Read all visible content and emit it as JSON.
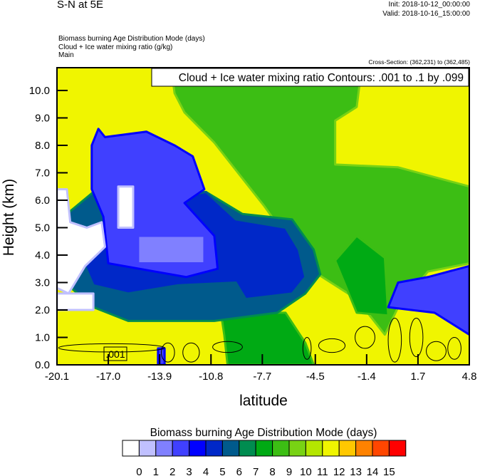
{
  "header": {
    "title": "S-N at 5E",
    "init": "Init: 2018-10-12_00:00:00",
    "valid": "Valid: 2018-10-16_15:00:00",
    "fields": [
      "Biomass burning Age Distribution Mode   (days)",
      "Cloud + Ice water mixing ratio   (g/kg)",
      "Main"
    ],
    "cross_section": "Cross-Section: (362,231) to (362,485)"
  },
  "chart_data": {
    "type": "heatmap",
    "xlabel": "latitude",
    "ylabel": "Height (km)",
    "xlim": [
      -20.1,
      4.8
    ],
    "ylim": [
      0,
      10.83
    ],
    "xticks": [
      "-20.1",
      "-17.0",
      "-13.9",
      "-10.8",
      "-7.7",
      "-4.5",
      "-1.4",
      "1.7",
      "4.8"
    ],
    "xtick_values": [
      -20.1,
      -17.0,
      -13.9,
      -10.8,
      -7.7,
      -4.5,
      -1.4,
      1.7,
      4.8
    ],
    "yticks": [
      "0.0",
      "1.0",
      "2.0",
      "3.0",
      "4.0",
      "5.0",
      "6.0",
      "7.0",
      "8.0",
      "9.0",
      "10.0"
    ],
    "contour_label": "Cloud + Ice water mixing ratio Contours: .001 to .1 by .099",
    "contour_value_label": ".001",
    "background_level": 11,
    "regions": [
      {
        "level": 9,
        "points": [
          [
            -13.2,
            10.83
          ],
          [
            -1.7,
            10.83
          ],
          [
            -2.0,
            9.4
          ],
          [
            -3.3,
            8.9
          ],
          [
            -3.3,
            7.3
          ],
          [
            0.5,
            7.2
          ],
          [
            4.8,
            6.5
          ],
          [
            4.8,
            3.7
          ],
          [
            2.3,
            3.4
          ],
          [
            0.5,
            2.1
          ],
          [
            -0.3,
            1.1
          ],
          [
            -2.0,
            2.4
          ],
          [
            -4.6,
            3.4
          ],
          [
            -6.3,
            4.7
          ],
          [
            -7.6,
            5.8
          ],
          [
            -9.3,
            7.1
          ],
          [
            -10.6,
            8.1
          ],
          [
            -12.4,
            9.2
          ],
          [
            -13.0,
            9.9
          ]
        ]
      },
      {
        "level": 8,
        "points": [
          [
            -3.3,
            3.8
          ],
          [
            -2.0,
            4.7
          ],
          [
            -0.3,
            3.9
          ],
          [
            -0.1,
            1.8
          ],
          [
            -2.0,
            1.9
          ]
        ]
      },
      {
        "level": 8,
        "points": [
          [
            -10.2,
            1.9
          ],
          [
            -6.3,
            1.9
          ],
          [
            -5.1,
            0.8
          ],
          [
            -4.6,
            0
          ],
          [
            -9.8,
            0
          ],
          [
            -10.0,
            1.1
          ]
        ]
      },
      {
        "level": 6,
        "points": [
          [
            -19.5,
            5.5
          ],
          [
            -17.9,
            6.3
          ],
          [
            -11.1,
            6.3
          ],
          [
            -8.9,
            5.5
          ],
          [
            -5.9,
            5.3
          ],
          [
            -4.6,
            4.2
          ],
          [
            -4.2,
            3.3
          ],
          [
            -5.1,
            2.6
          ],
          [
            -6.8,
            1.9
          ],
          [
            -10.6,
            1.6
          ],
          [
            -15.8,
            1.6
          ],
          [
            -17.9,
            2.1
          ],
          [
            -20.0,
            3.2
          ]
        ]
      },
      {
        "level": 5,
        "points": [
          [
            -19.2,
            4.7
          ],
          [
            -17.5,
            4.7
          ],
          [
            -13.6,
            6.0
          ],
          [
            -11.1,
            6.3
          ],
          [
            -9.3,
            5.3
          ],
          [
            -6.3,
            5.0
          ],
          [
            -5.5,
            4.2
          ],
          [
            -5.1,
            3.2
          ],
          [
            -5.9,
            2.6
          ],
          [
            -8.7,
            2.4
          ],
          [
            -9.3,
            3.0
          ],
          [
            -12.8,
            2.9
          ],
          [
            -15.8,
            2.6
          ],
          [
            -17.9,
            2.9
          ]
        ]
      },
      {
        "level": 3,
        "points": [
          [
            -18.0,
            8.0
          ],
          [
            -17.6,
            8.6
          ],
          [
            -17.2,
            8.3
          ],
          [
            -14.7,
            8.5
          ],
          [
            -13.0,
            8.0
          ],
          [
            -11.9,
            7.6
          ],
          [
            -11.2,
            6.4
          ],
          [
            -12.4,
            5.9
          ],
          [
            -10.6,
            4.7
          ],
          [
            -10.4,
            3.5
          ],
          [
            -12.3,
            3.2
          ],
          [
            -17.0,
            3.7
          ],
          [
            -17.3,
            5.4
          ],
          [
            -18.0,
            6.4
          ]
        ]
      },
      {
        "level": 2,
        "points": [
          [
            -15.2,
            4.7
          ],
          [
            -11.2,
            4.7
          ],
          [
            -11.2,
            3.7
          ],
          [
            -15.2,
            3.7
          ]
        ]
      },
      {
        "level": 3,
        "points": [
          [
            -0.1,
            2.1
          ],
          [
            0.5,
            3.0
          ],
          [
            2.3,
            3.2
          ],
          [
            4.8,
            3.6
          ],
          [
            4.8,
            1.1
          ],
          [
            2.7,
            1.9
          ]
        ]
      },
      {
        "level": 3,
        "points": [
          [
            -14.0,
            0.6
          ],
          [
            -13.6,
            0.6
          ],
          [
            -13.6,
            0
          ],
          [
            -14.0,
            0
          ]
        ]
      },
      {
        "level": 0,
        "points": [
          [
            -20.1,
            6.4
          ],
          [
            -19.5,
            6.4
          ],
          [
            -19.3,
            5.2
          ],
          [
            -18.3,
            5.0
          ],
          [
            -17.4,
            5.2
          ],
          [
            -17.2,
            4.3
          ],
          [
            -18.4,
            3.6
          ],
          [
            -19.4,
            2.6
          ],
          [
            -20.1,
            2.8
          ]
        ]
      },
      {
        "level": 0,
        "points": [
          [
            -16.4,
            6.5
          ],
          [
            -15.5,
            6.5
          ],
          [
            -15.5,
            5.0
          ],
          [
            -16.4,
            5.0
          ]
        ]
      },
      {
        "level": 0,
        "points": [
          [
            -20.1,
            2.6
          ],
          [
            -17.9,
            2.6
          ],
          [
            -17.9,
            2.0
          ],
          [
            -20.1,
            2.0
          ]
        ]
      }
    ],
    "contours": [
      {
        "lat": -16.8,
        "h": 0.62,
        "rlat": 3.2,
        "rh": 0.15
      },
      {
        "lat": -13.4,
        "h": 0.45,
        "rlat": 0.4,
        "rh": 0.35
      },
      {
        "lat": -12.0,
        "h": 0.45,
        "rlat": 0.5,
        "rh": 0.35
      },
      {
        "lat": -9.8,
        "h": 0.65,
        "rlat": 0.9,
        "rh": 0.2
      },
      {
        "lat": -5.0,
        "h": 0.6,
        "rlat": 0.25,
        "rh": 0.4
      },
      {
        "lat": -3.5,
        "h": 0.7,
        "rlat": 0.8,
        "rh": 0.25
      },
      {
        "lat": -1.5,
        "h": 1.0,
        "rlat": 0.6,
        "rh": 0.4
      },
      {
        "lat": 0.3,
        "h": 0.9,
        "rlat": 0.4,
        "rh": 0.8
      },
      {
        "lat": 1.6,
        "h": 1.0,
        "rlat": 0.4,
        "rh": 0.7
      },
      {
        "lat": 2.8,
        "h": 0.5,
        "rlat": 0.6,
        "rh": 0.35
      },
      {
        "lat": 3.9,
        "h": 0.6,
        "rlat": 0.4,
        "rh": 0.4
      }
    ]
  },
  "colorbar": {
    "title": "Biomass burning Age Distribution Mode  (days)",
    "colors": [
      "#ffffff",
      "#c0c0ff",
      "#8080ff",
      "#4040ff",
      "#0000ff",
      "#0028c8",
      "#005a8c",
      "#008c50",
      "#00aa14",
      "#3cbe14",
      "#78d214",
      "#b4e600",
      "#f0f500",
      "#ffc800",
      "#ff8200",
      "#ff4600",
      "#ff0000"
    ],
    "labels": [
      "0",
      "1",
      "2",
      "3",
      "4",
      "5",
      "6",
      "7",
      "8",
      "9",
      "10",
      "11",
      "12",
      "13",
      "14",
      "15"
    ]
  }
}
